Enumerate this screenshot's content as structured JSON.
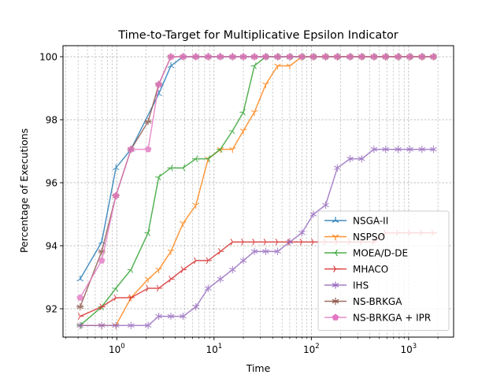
{
  "chart_data": {
    "type": "line",
    "title": "Time-to-Target for Multiplicative Epsilon Indicator",
    "xlabel": "Time",
    "ylabel": "Percentage of Executions",
    "xscale": "log",
    "xlim": [
      0.28,
      2900
    ],
    "ylim": [
      91.1,
      100.35
    ],
    "y_ticks": [
      92,
      94,
      96,
      98,
      100
    ],
    "x_ticks": [
      {
        "value": 1,
        "base": "10",
        "exp": "0"
      },
      {
        "value": 10,
        "base": "10",
        "exp": "1"
      },
      {
        "value": 100,
        "base": "10",
        "exp": "2"
      },
      {
        "value": 1000,
        "base": "10",
        "exp": "3"
      }
    ],
    "grid": true,
    "legend_position": "bottom-right",
    "series": [
      {
        "name": "NSGA-II",
        "color": "#1f77b4",
        "marker": "tri-up",
        "x": [
          0.42,
          0.7,
          0.98,
          1.4,
          2.7,
          3.6,
          4.8,
          6.5,
          8.7,
          11.6,
          15.5,
          20,
          26,
          34,
          45,
          60,
          80,
          105,
          140,
          185,
          250,
          330,
          440,
          580,
          780,
          1030,
          1370,
          1800
        ],
        "y": [
          92.94,
          94.12,
          96.47,
          97.06,
          98.82,
          99.71,
          100,
          100,
          100,
          100,
          100,
          100,
          100,
          100,
          100,
          100,
          100,
          100,
          100,
          100,
          100,
          100,
          100,
          100,
          100,
          100,
          100,
          100
        ]
      },
      {
        "name": "NSPSO",
        "color": "#ff7f0e",
        "marker": "tri-down",
        "x": [
          0.42,
          0.7,
          0.98,
          1.4,
          2.1,
          2.7,
          3.6,
          4.8,
          6.5,
          8.7,
          11.6,
          15.5,
          20,
          26,
          34,
          45,
          60,
          80,
          105,
          140,
          185,
          250,
          330,
          440,
          580,
          780,
          1030,
          1370,
          1800
        ],
        "y": [
          91.47,
          91.47,
          91.47,
          92.35,
          92.94,
          93.24,
          93.82,
          94.71,
          95.29,
          96.76,
          97.06,
          97.06,
          97.65,
          98.24,
          99.12,
          99.71,
          99.71,
          100,
          100,
          100,
          100,
          100,
          100,
          100,
          100,
          100,
          100,
          100,
          100
        ]
      },
      {
        "name": "MOEA/D-DE",
        "color": "#2ca02c",
        "marker": "tri-left",
        "x": [
          0.42,
          0.7,
          0.98,
          1.4,
          2.1,
          2.7,
          3.6,
          4.8,
          6.5,
          8.7,
          11.6,
          15.5,
          20,
          26,
          34,
          45,
          60,
          80,
          105,
          140,
          185,
          250,
          330,
          440,
          580,
          780,
          1030,
          1370,
          1800
        ],
        "y": [
          91.47,
          92.06,
          92.65,
          93.24,
          94.41,
          96.18,
          96.47,
          96.47,
          96.76,
          96.76,
          97.06,
          97.65,
          98.24,
          99.71,
          100,
          100,
          100,
          100,
          100,
          100,
          100,
          100,
          100,
          100,
          100,
          100,
          100,
          100,
          100
        ]
      },
      {
        "name": "MHACO",
        "color": "#d62728",
        "marker": "tri-right",
        "x": [
          0.42,
          0.7,
          0.98,
          1.4,
          2.1,
          2.7,
          3.6,
          4.8,
          6.5,
          8.7,
          11.6,
          15.5,
          20,
          26,
          34,
          45,
          60,
          80,
          105,
          140,
          185,
          250,
          330,
          440,
          580,
          780,
          1030,
          1370,
          1800
        ],
        "y": [
          91.76,
          92.06,
          92.35,
          92.35,
          92.65,
          92.65,
          92.94,
          93.24,
          93.53,
          93.53,
          93.82,
          94.12,
          94.12,
          94.12,
          94.12,
          94.12,
          94.12,
          94.12,
          94.12,
          94.12,
          94.12,
          94.12,
          94.12,
          94.12,
          94.41,
          94.41,
          94.41,
          94.41,
          94.41
        ]
      },
      {
        "name": "IHS",
        "color": "#9467bd",
        "marker": "star",
        "x": [
          0.42,
          0.7,
          0.98,
          1.4,
          2.1,
          2.7,
          3.6,
          4.8,
          6.5,
          8.7,
          11.6,
          15.5,
          20,
          26,
          34,
          45,
          60,
          80,
          105,
          140,
          185,
          250,
          330,
          440,
          580,
          780,
          1030,
          1370,
          1800
        ],
        "y": [
          91.47,
          91.47,
          91.47,
          91.47,
          91.47,
          91.76,
          91.76,
          91.76,
          92.06,
          92.65,
          92.94,
          93.24,
          93.53,
          93.82,
          93.82,
          93.82,
          94.12,
          94.41,
          95.0,
          95.29,
          96.47,
          96.76,
          96.76,
          97.06,
          97.06,
          97.06,
          97.06,
          97.06,
          97.06
        ]
      },
      {
        "name": "NS-BRKGA",
        "color": "#8c564b",
        "marker": "asterisk",
        "x": [
          0.42,
          0.7,
          0.98,
          1.4,
          2.1,
          2.7,
          3.6,
          4.8,
          6.5,
          8.7,
          11.6,
          15.5,
          20,
          26,
          34,
          45,
          60,
          80,
          105,
          140,
          185,
          250,
          330,
          440,
          580,
          780,
          1030,
          1370,
          1800
        ],
        "y": [
          92.06,
          93.82,
          95.59,
          97.06,
          97.94,
          99.12,
          100,
          100,
          100,
          100,
          100,
          100,
          100,
          100,
          100,
          100,
          100,
          100,
          100,
          100,
          100,
          100,
          100,
          100,
          100,
          100,
          100,
          100,
          100
        ]
      },
      {
        "name": "NS-BRKGA + IPR",
        "color": "#e377c2",
        "marker": "pentagon",
        "x": [
          0.42,
          0.7,
          0.98,
          1.4,
          2.1,
          2.7,
          3.6,
          4.8,
          6.5,
          8.7,
          11.6,
          15.5,
          20,
          26,
          34,
          45,
          60,
          80,
          105,
          140,
          185,
          250,
          330,
          440,
          580,
          780,
          1030,
          1370,
          1800
        ],
        "y": [
          92.35,
          93.53,
          95.59,
          97.06,
          97.06,
          99.12,
          100,
          100,
          100,
          100,
          100,
          100,
          100,
          100,
          100,
          100,
          100,
          100,
          100,
          100,
          100,
          100,
          100,
          100,
          100,
          100,
          100,
          100,
          100
        ]
      }
    ]
  }
}
